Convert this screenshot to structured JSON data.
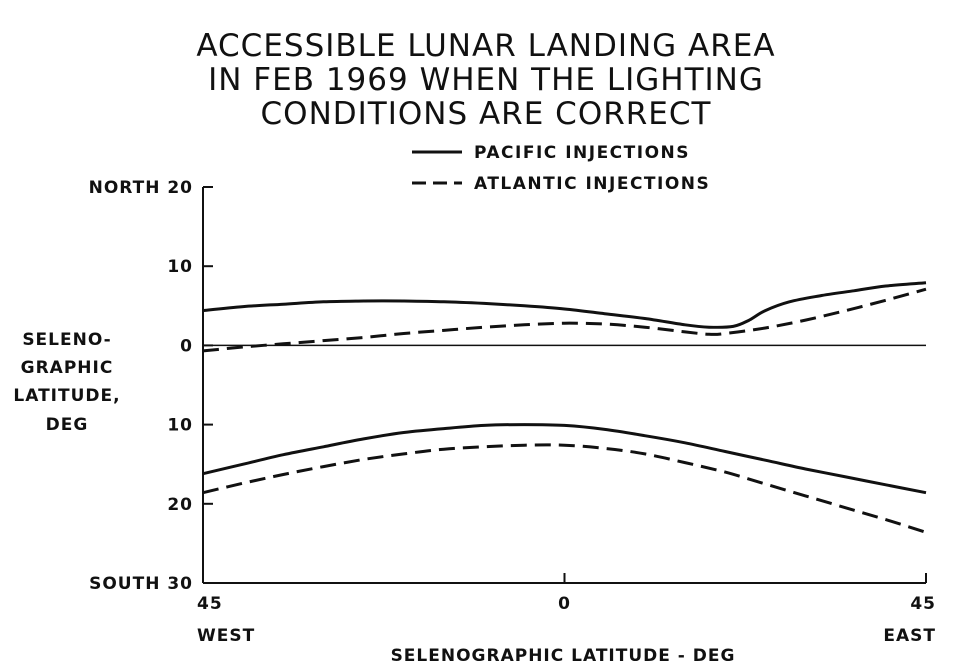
{
  "chart_data": {
    "type": "line",
    "title_lines": [
      "ACCESSIBLE LUNAR LANDING AREA",
      "IN FEB 1969 WHEN THE LIGHTING",
      "CONDITIONS ARE CORRECT"
    ],
    "xlabel": "SELENOGRAPHIC LATITUDE - DEG",
    "ylabel_lines": [
      "SELENO-",
      "GRAPHIC",
      "LATITUDE,",
      "DEG"
    ],
    "xlim": [
      -45,
      45
    ],
    "ylim": [
      -30,
      20
    ],
    "x_ticks": [
      {
        "value": -45,
        "label": "45",
        "sub": "WEST"
      },
      {
        "value": 0,
        "label": "0",
        "sub": ""
      },
      {
        "value": 45,
        "label": "45",
        "sub": "EAST"
      }
    ],
    "y_ticks": [
      {
        "value": 20,
        "label": "NORTH 20"
      },
      {
        "value": 10,
        "label": "10"
      },
      {
        "value": 0,
        "label": "0"
      },
      {
        "value": -10,
        "label": "10"
      },
      {
        "value": -20,
        "label": "20"
      },
      {
        "value": -30,
        "label": "SOUTH 30"
      }
    ],
    "zero_line": true,
    "legend_position": "top-right",
    "series": [
      {
        "name": "PACIFIC INJECTIONS",
        "style": "solid",
        "x": [
          -45,
          -40,
          -35,
          -30,
          -25,
          -20,
          -15,
          -10,
          -5,
          0,
          5,
          10,
          15,
          18,
          21,
          23,
          25,
          28,
          32,
          36,
          40,
          45
        ],
        "y": [
          4.4,
          4.9,
          5.2,
          5.5,
          5.6,
          5.6,
          5.5,
          5.3,
          5.0,
          4.6,
          4.0,
          3.4,
          2.6,
          2.3,
          2.4,
          3.2,
          4.4,
          5.5,
          6.3,
          6.9,
          7.5,
          7.9
        ]
      },
      {
        "name": "ATLANTIC INJECTIONS",
        "style": "dashed",
        "x": [
          -45,
          -40,
          -35,
          -30,
          -25,
          -20,
          -15,
          -10,
          -5,
          0,
          5,
          10,
          15,
          18,
          20,
          25,
          30,
          35,
          40,
          45
        ],
        "y": [
          -0.7,
          -0.2,
          0.2,
          0.6,
          1.0,
          1.5,
          1.9,
          2.3,
          2.6,
          2.8,
          2.7,
          2.3,
          1.7,
          1.4,
          1.5,
          2.2,
          3.2,
          4.4,
          5.7,
          7.1
        ]
      },
      {
        "name": "",
        "style": "solid",
        "x": [
          -45,
          -40,
          -35,
          -30,
          -25,
          -20,
          -15,
          -10,
          -5,
          0,
          5,
          10,
          15,
          20,
          25,
          30,
          35,
          40,
          45
        ],
        "y": [
          -16.2,
          -15.0,
          -13.8,
          -12.8,
          -11.8,
          -11.0,
          -10.5,
          -10.1,
          -10.0,
          -10.1,
          -10.6,
          -11.4,
          -12.3,
          -13.4,
          -14.5,
          -15.6,
          -16.6,
          -17.6,
          -18.6
        ]
      },
      {
        "name": "",
        "style": "dashed",
        "x": [
          -45,
          -40,
          -35,
          -30,
          -25,
          -20,
          -15,
          -10,
          -5,
          0,
          5,
          10,
          15,
          20,
          25,
          30,
          35,
          40,
          45
        ],
        "y": [
          -18.6,
          -17.4,
          -16.3,
          -15.3,
          -14.4,
          -13.7,
          -13.1,
          -12.8,
          -12.6,
          -12.6,
          -13.0,
          -13.7,
          -14.8,
          -16.0,
          -17.5,
          -19.0,
          -20.5,
          -22.0,
          -23.6
        ]
      }
    ]
  }
}
